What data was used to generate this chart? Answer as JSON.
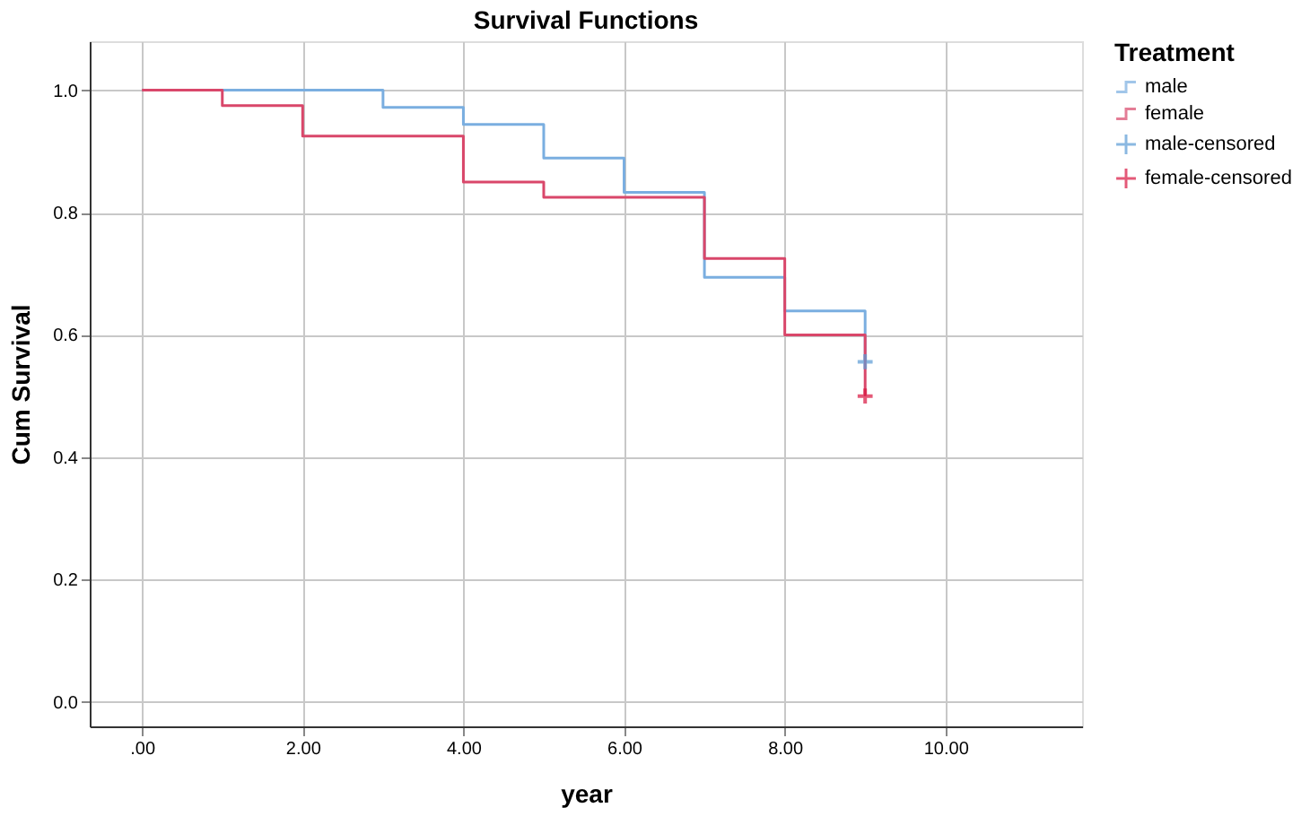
{
  "chart_data": {
    "type": "step",
    "title": "Survival Functions",
    "xlabel": "year",
    "ylabel": "Cum Survival",
    "legend_title": "Treatment",
    "xlim": [
      -0.65,
      11.7
    ],
    "ylim": [
      -0.04,
      1.08
    ],
    "xticks": [
      {
        "value": 0,
        "label": ".00"
      },
      {
        "value": 2,
        "label": "2.00"
      },
      {
        "value": 4,
        "label": "4.00"
      },
      {
        "value": 6,
        "label": "6.00"
      },
      {
        "value": 8,
        "label": "8.00"
      },
      {
        "value": 10,
        "label": "10.00"
      }
    ],
    "yticks": [
      {
        "value": 0,
        "label": "0.0"
      },
      {
        "value": 0.2,
        "label": "0.2"
      },
      {
        "value": 0.4,
        "label": "0.4"
      },
      {
        "value": 0.6,
        "label": "0.6"
      },
      {
        "value": 0.8,
        "label": "0.8"
      },
      {
        "value": 1,
        "label": "1.0"
      }
    ],
    "grid": true,
    "legend": "right",
    "series": [
      {
        "name": "male",
        "color": "#7aaee0",
        "x": [
          0,
          3,
          4,
          5,
          6,
          7,
          8,
          9
        ],
        "values": [
          1.0,
          0.972,
          0.944,
          0.889,
          0.833,
          0.694,
          0.639,
          0.556
        ]
      },
      {
        "name": "female",
        "color": "#d9476a",
        "x": [
          0,
          1,
          2,
          4,
          5,
          7,
          8,
          9
        ],
        "values": [
          1.0,
          0.975,
          0.925,
          0.85,
          0.825,
          0.725,
          0.6,
          0.5
        ]
      },
      {
        "name": "male-censored",
        "type": "scatter",
        "marker": "cross",
        "color": "#5b9bd5",
        "x": [
          9
        ],
        "values": [
          0.556
        ]
      },
      {
        "name": "female-censored",
        "type": "scatter",
        "marker": "cross",
        "color": "#d9143f",
        "x": [
          9
        ],
        "values": [
          0.5
        ]
      }
    ]
  }
}
